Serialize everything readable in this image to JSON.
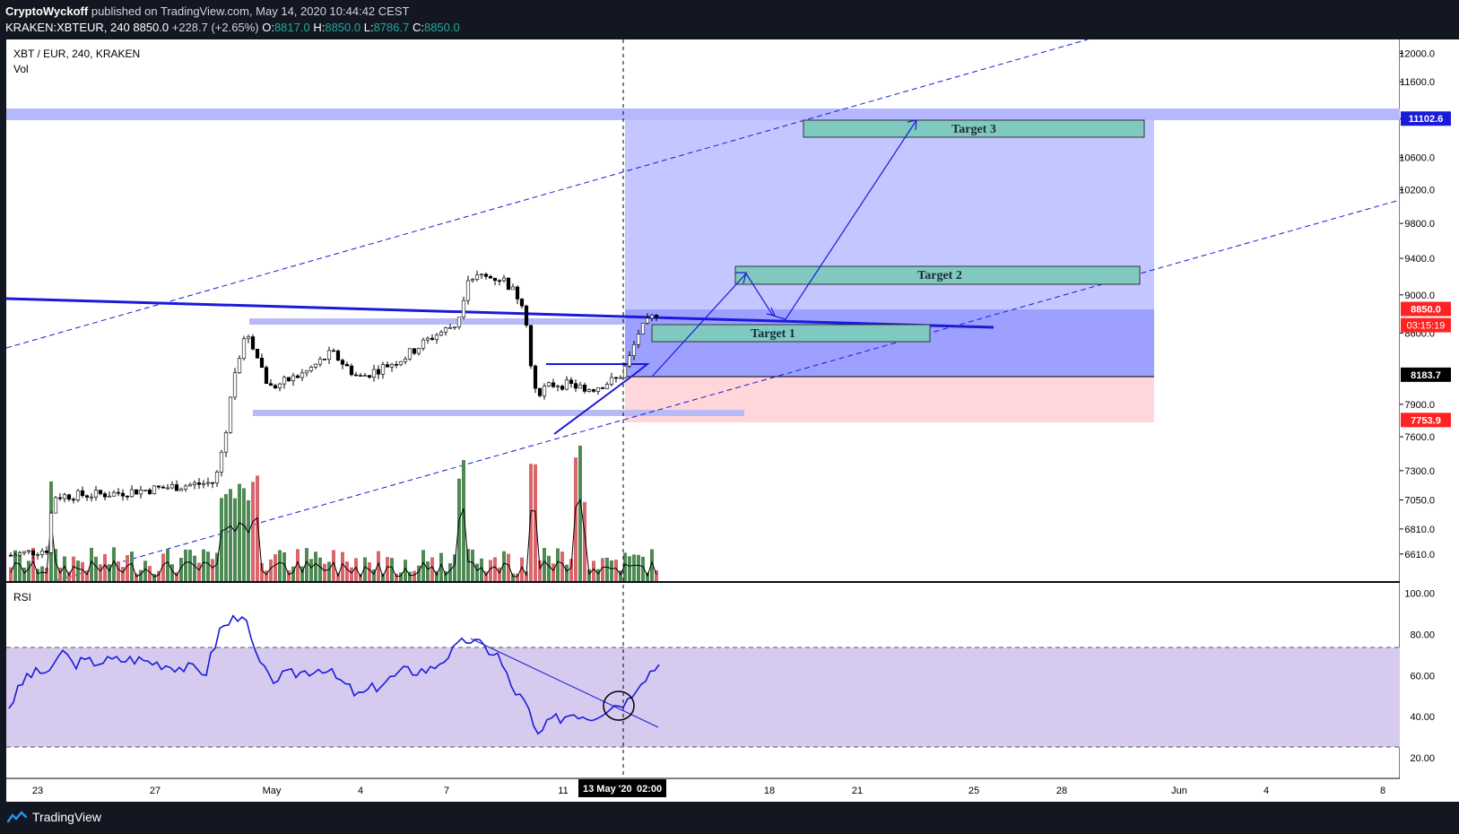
{
  "header": {
    "author": "CryptoWyckoff",
    "published": "published on TradingView.com, May 14, 2020 10:44:42 CEST",
    "symbol_line": "KRAKEN:XBTEUR, 240",
    "last": "8850.0",
    "change": "+228.7 (+2.65%)",
    "o_label": "O:",
    "o": "8817.0",
    "h_label": "H:",
    "h": "8850.0",
    "l_label": "L:",
    "l": "8786.7",
    "c_label": "C:",
    "c": "8850.0"
  },
  "pane_title": "XBT / EUR, 240, KRAKEN",
  "vol_label": "Vol",
  "rsi_label": "RSI",
  "footer_brand": "TradingView",
  "crosshair": {
    "date_label": "13 May '20",
    "time_label": "02:00"
  },
  "colors": {
    "background": "#131722",
    "chart_bg": "#ffffff",
    "up": "#26a69a",
    "down": "#ef5350",
    "vol_up": "#4f8a55",
    "vol_down": "#d9666b",
    "trend_blue": "#1a1adb",
    "zone_blue": "#c4c6ff",
    "zone_dark": "#9ea0ff",
    "stop_red": "#ffd6d9",
    "target_fill": "#80c9c0",
    "rsi_band": "#d6cbee"
  },
  "chart_data": {
    "type": "candlestick",
    "price_axis": {
      "min": 6400,
      "max": 12200,
      "scale": "log",
      "ticks": [
        "12000.0",
        "11600.0",
        "11100.0",
        "10600.0",
        "10200.0",
        "9800.0",
        "9400.0",
        "9000.0",
        "8600.0",
        "7900.0",
        "7600.0",
        "7300.0",
        "7050.0",
        "6810.0",
        "6610.0"
      ]
    },
    "time_axis": {
      "labels": [
        "23",
        "27",
        "May",
        "4",
        "7",
        "11",
        "18",
        "21",
        "25",
        "28",
        "Jun",
        "4",
        "8"
      ]
    },
    "price_labels": [
      {
        "value": 11102.6,
        "text": "11102.6",
        "color": "#1a1adb"
      },
      {
        "value": 8850.0,
        "text": "8850.0",
        "color": "#ff2222"
      },
      {
        "value": 8183.7,
        "text": "8183.7",
        "color": "#000000"
      },
      {
        "value": 7753.9,
        "text": "7753.9",
        "color": "#ff2222"
      }
    ],
    "countdown": "03:15:19",
    "targets": [
      {
        "label": "Target 1",
        "low": 8560,
        "high": 8750
      },
      {
        "label": "Target 2",
        "low": 9200,
        "high": 9420
      },
      {
        "label": "Target 3",
        "low": 10900,
        "high": 11100
      }
    ],
    "position": {
      "entry": 8183.7,
      "target": 11102.6,
      "stop": 7753.9
    },
    "rsi_axis": {
      "min": 10,
      "max": 105,
      "ticks": [
        "100.00",
        "80.00",
        "60.00",
        "40.00",
        "20.00"
      ],
      "band": [
        25,
        75
      ]
    }
  }
}
